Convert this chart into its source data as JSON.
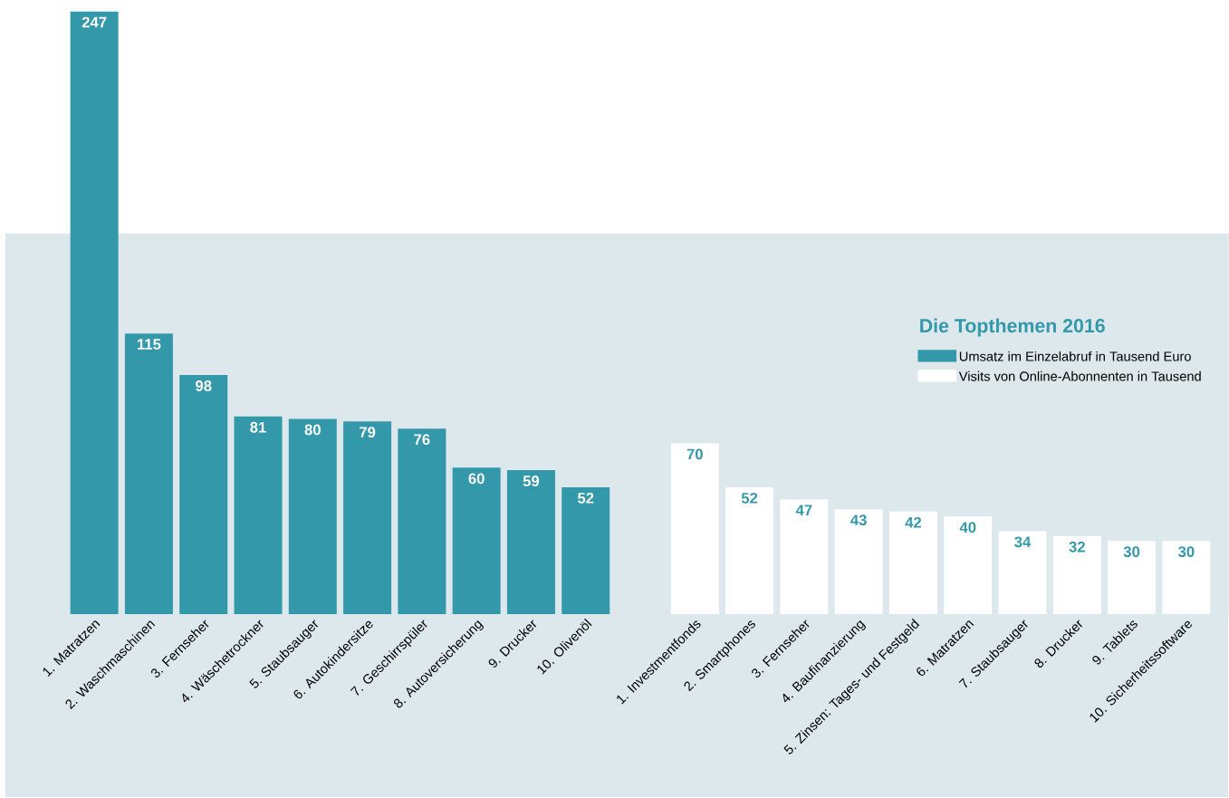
{
  "chart_data": {
    "type": "bar",
    "legend_title": "Die Topthemen 2016",
    "categories": [
      "1. Matratzen",
      "2. Waschmaschinen",
      "3. Fernseher",
      "4. Wäschetrockner",
      "5. Staubsauger",
      "6. Autokindersitze",
      "7. Geschirrspüler",
      "8. Autoversicherung",
      "9. Drucker",
      "10. Olivenöl",
      null,
      "1. Investmentfonds",
      "2. Smartphones",
      "3. Fernseher",
      "4. Baufinanzierung",
      "5. Zinsen: Tages- und Festgeld",
      "6. Matratzen",
      "7. Staubsauger",
      "8. Drucker",
      "9. Tablets",
      "10. Sicherheitssoftware"
    ],
    "series": [
      {
        "name": "Umsatz im Einzelabruf in Tausend Euro",
        "color": "#3399aa",
        "values": [
          247,
          115,
          98,
          81,
          80,
          79,
          76,
          60,
          59,
          52,
          null,
          null,
          null,
          null,
          null,
          null,
          null,
          null,
          null,
          null,
          null
        ]
      },
      {
        "name": "Visits von Online-Abonnenten in Tausend",
        "color": "#ffffff",
        "values": [
          null,
          null,
          null,
          null,
          null,
          null,
          null,
          null,
          null,
          null,
          null,
          70,
          52,
          47,
          43,
          42,
          40,
          34,
          32,
          30,
          30
        ]
      }
    ],
    "bands": [
      {
        "axis": "y",
        "from": 0,
        "to": 156,
        "color": "#dce8ec"
      }
    ],
    "data_labels": true,
    "legend": "right"
  }
}
